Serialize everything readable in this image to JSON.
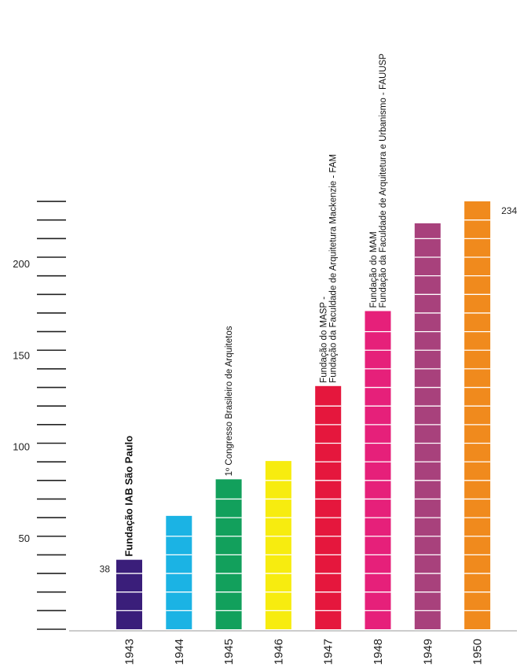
{
  "chart_data": {
    "type": "bar",
    "categories": [
      "1943",
      "1944",
      "1945",
      "1946",
      "1947",
      "1948",
      "1949",
      "1950"
    ],
    "values": [
      38,
      62,
      82,
      92,
      133,
      174,
      222,
      234
    ],
    "colors": [
      "#3a1e7a",
      "#1bb3e4",
      "#12a05c",
      "#f7ec0f",
      "#e5173d",
      "#e6207a",
      "#a8417c",
      "#f08a1d"
    ],
    "ylim": [
      0,
      234
    ],
    "yticks": [
      50,
      100,
      150,
      200
    ],
    "data_labels": [
      {
        "index": 0,
        "text": "38"
      },
      {
        "index": 7,
        "text": "234"
      }
    ],
    "annotations": [
      {
        "index": 0,
        "lines": [
          "Fundação IAB São Paulo"
        ],
        "bold": true
      },
      {
        "index": 2,
        "lines": [
          "1º Congresso Brasileiro de Arquitetos"
        ],
        "bold": false
      },
      {
        "index": 4,
        "lines": [
          "Fundação do MASP -",
          "Fundação da Faculdade de Arquitetura Mackenzie - FAM"
        ],
        "bold": false
      },
      {
        "index": 5,
        "lines": [
          "Fundação do MAM",
          "Fundação da Faculdade de Arquitetura e Urbanismo - FAUUSP"
        ],
        "bold": false
      }
    ],
    "grid": false,
    "legend": "none"
  }
}
